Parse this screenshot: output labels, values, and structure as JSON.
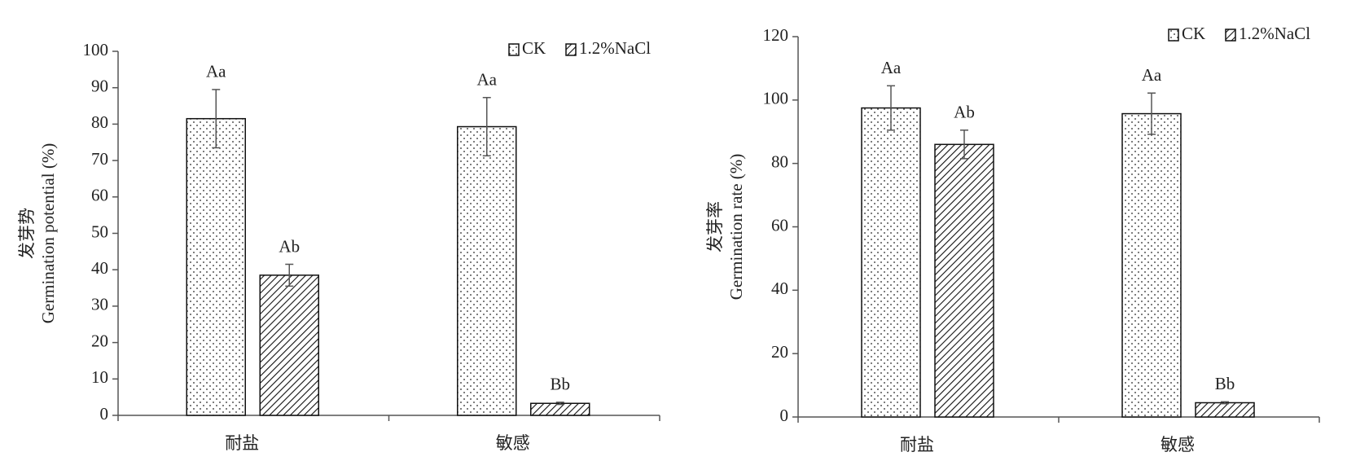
{
  "chart_data": [
    {
      "type": "bar",
      "ylabel": [
        "发芽势",
        "Germination potential (%)"
      ],
      "categories": [
        "耐盐",
        "敏感"
      ],
      "series": [
        {
          "name": "CK",
          "pattern": "dots",
          "values": [
            81.5,
            79.3
          ],
          "errors": [
            8,
            8
          ],
          "labels": [
            "Aa",
            "Aa"
          ]
        },
        {
          "name": "1.2%NaCl",
          "pattern": "hatch",
          "values": [
            38.5,
            3.3
          ],
          "errors": [
            3,
            0.3
          ],
          "labels": [
            "Ab",
            "Bb"
          ]
        }
      ],
      "ylim": [
        0,
        100
      ],
      "yticks": [
        0,
        10,
        20,
        30,
        40,
        50,
        60,
        70,
        80,
        90,
        100
      ],
      "legend": "upper right"
    },
    {
      "type": "bar",
      "ylabel": [
        "发芽率",
        "Germination rate (%)"
      ],
      "categories": [
        "耐盐",
        "敏感"
      ],
      "series": [
        {
          "name": "CK",
          "pattern": "dots",
          "values": [
            97.5,
            95.7
          ],
          "errors": [
            7,
            6.5
          ],
          "labels": [
            "Aa",
            "Aa"
          ]
        },
        {
          "name": "1.2%NaCl",
          "pattern": "hatch",
          "values": [
            86,
            4.5
          ],
          "errors": [
            4.5,
            0.3
          ],
          "labels": [
            "Ab",
            "Bb"
          ]
        }
      ],
      "ylim": [
        0,
        120
      ],
      "yticks": [
        0,
        20,
        40,
        60,
        80,
        100,
        120
      ],
      "legend": "upper right"
    }
  ]
}
